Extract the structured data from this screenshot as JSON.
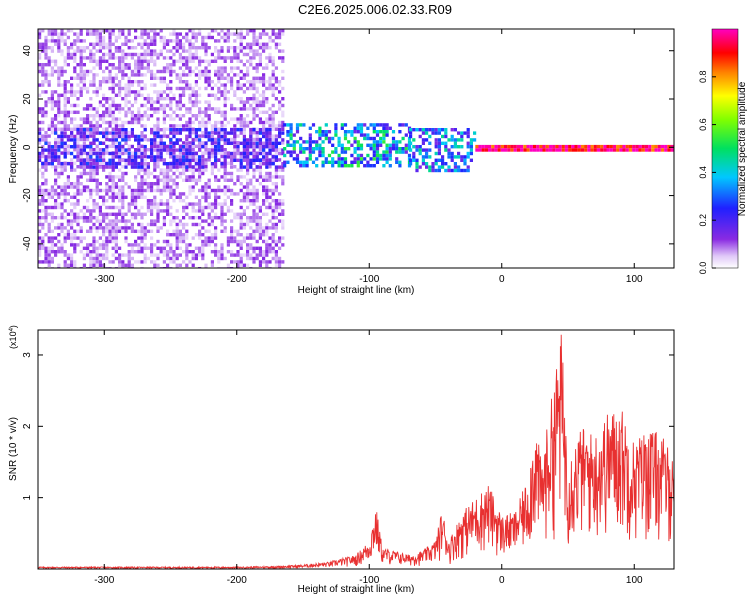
{
  "title": "C2E6.2025.006.02.33.R09",
  "chart_data": [
    {
      "type": "heatmap",
      "xlabel": "Height of straight line (km)",
      "ylabel": "Frequency (Hz)",
      "xlim": [
        -350,
        130
      ],
      "ylim": [
        -50,
        49
      ],
      "x_ticks": [
        "-300",
        "-200",
        "-100",
        "0",
        "100"
      ],
      "x_tick_values": [
        -300,
        -200,
        -100,
        0,
        100
      ],
      "y_ticks": [
        "40",
        "20",
        "0",
        "-20",
        "-40"
      ],
      "y_tick_values": [
        40,
        20,
        0,
        -20,
        -40
      ],
      "colorbar": {
        "label": "Normalized spectral amplitude",
        "range": [
          0,
          1
        ],
        "ticks": [
          "0.0",
          "0.2",
          "0.4",
          "0.6",
          "0.8"
        ],
        "tick_values": [
          0.0,
          0.2,
          0.4,
          0.6,
          0.8
        ],
        "colormap": "rainbow (white-purple-blue-cyan-green-yellow-red-magenta)"
      },
      "regions": [
        {
          "x_range": [
            -350,
            -165
          ],
          "freq_range": [
            -50,
            49
          ],
          "amplitude": 0.08
        },
        {
          "x_range": [
            -350,
            -165
          ],
          "freq_range": [
            -8,
            8
          ],
          "amplitude": 0.18
        },
        {
          "x_range": [
            -165,
            -70
          ],
          "freq_range": [
            -8,
            10
          ],
          "amplitude": 0.35
        },
        {
          "x_range": [
            -70,
            -20
          ],
          "freq_range": [
            -10,
            8
          ],
          "amplitude": 0.3
        },
        {
          "x_range": [
            -20,
            130
          ],
          "freq_range": [
            -1,
            1
          ],
          "amplitude": 0.95
        }
      ]
    },
    {
      "type": "line",
      "xlabel": "Height of straight line (km)",
      "ylabel": "SNR (10 * v/v)",
      "y_multiplier": "(x10^4)",
      "xlim": [
        -350,
        130
      ],
      "ylim": [
        0,
        3.35
      ],
      "x_ticks": [
        "-300",
        "-200",
        "-100",
        "0",
        "100"
      ],
      "x_tick_values": [
        -300,
        -200,
        -100,
        0,
        100
      ],
      "y_ticks": [
        "3",
        "2",
        "1"
      ],
      "y_tick_values": [
        3,
        2,
        1
      ],
      "series": [
        {
          "color": "#e83030",
          "x": [
            -350,
            -300,
            -250,
            -200,
            -170,
            -150,
            -130,
            -110,
            -100,
            -95,
            -90,
            -80,
            -70,
            -60,
            -50,
            -45,
            -40,
            -30,
            -20,
            -10,
            0,
            10,
            20,
            25,
            30,
            40,
            45,
            50,
            60,
            70,
            80,
            90,
            100,
            110,
            120,
            130
          ],
          "values": [
            0.03,
            0.03,
            0.03,
            0.03,
            0.04,
            0.06,
            0.1,
            0.2,
            0.4,
            0.9,
            0.3,
            0.25,
            0.2,
            0.25,
            0.4,
            0.85,
            0.4,
            0.8,
            1.0,
            1.2,
            0.75,
            0.8,
            1.3,
            2.1,
            1.5,
            2.7,
            3.35,
            1.6,
            2.0,
            1.9,
            2.2,
            2.3,
            1.8,
            2.0,
            1.9,
            1.6
          ]
        }
      ]
    }
  ]
}
